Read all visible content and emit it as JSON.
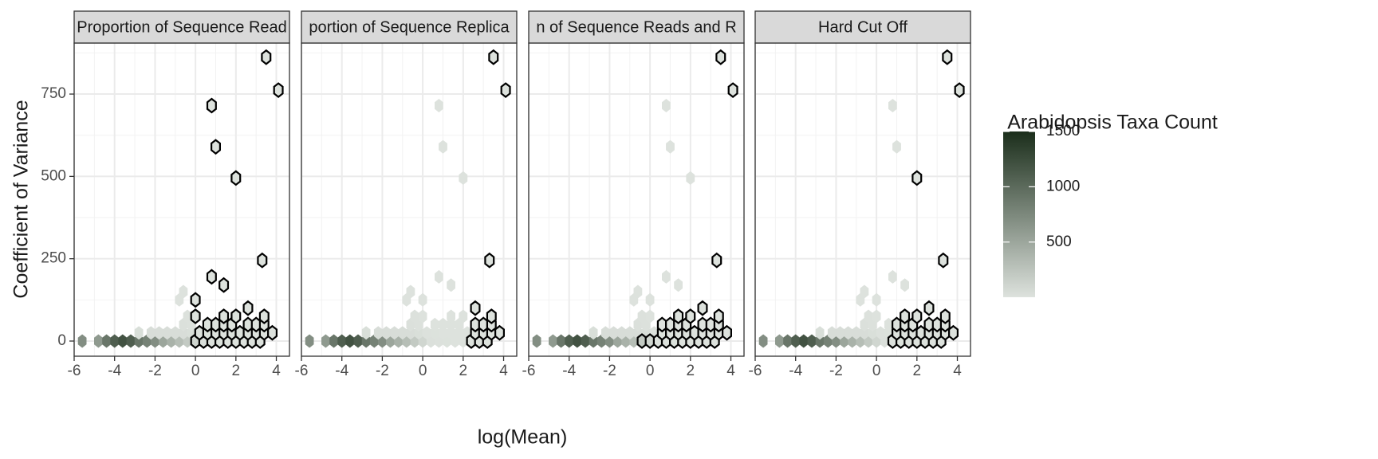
{
  "chart_data": {
    "type": "hexbin",
    "x_label": "log(Mean)",
    "y_label": "Coefficient of Variance",
    "legend_title": "Arabidopsis Taxa Count",
    "xlim": [
      -6.0,
      4.65
    ],
    "ylim": [
      -46,
      905
    ],
    "xticks": [
      -6,
      -4,
      -2,
      0,
      2,
      4
    ],
    "yticks": [
      0,
      250,
      500,
      750
    ],
    "x_minor_ticks": [
      -5,
      -3,
      -1,
      1,
      3
    ],
    "y_minor_ticks": [
      125,
      375,
      625,
      875
    ],
    "grid": true,
    "colorlim": [
      1,
      1500
    ],
    "colorticks": [
      500,
      1000,
      1500
    ],
    "colors": [
      "#dde2dd",
      "#1b2e1b"
    ],
    "outline_color": "#000000",
    "hexes": {
      "x": [
        -5.6,
        -4.8,
        -4.4,
        -4.0,
        -3.6,
        -3.2,
        -2.8,
        -2.4,
        -2.0,
        -1.6,
        -1.2,
        -0.8,
        -0.4,
        0,
        0.4,
        0.8,
        1.2,
        1.6,
        2.0,
        2.4,
        2.8,
        3.2,
        -2.8,
        -2.2,
        -1.8,
        -1.4,
        -1.0,
        -0.6,
        -0.2,
        0.2,
        0.6,
        1.0,
        1.4,
        1.8,
        2.2,
        2.6,
        3.0,
        3.4,
        3.8,
        -0.6,
        -0.2,
        0.6,
        1.0,
        1.4,
        1.8,
        2.6,
        3.0,
        3.4,
        -0.4,
        0,
        1.4,
        2.0,
        3.4,
        2.6,
        -0.8,
        -0.6,
        0,
        0.8,
        1.4,
        3.3,
        0.8,
        1.0,
        2.0,
        3.5,
        4.1
      ],
      "y": [
        0,
        0,
        0,
        0,
        0,
        0,
        0,
        0,
        0,
        0,
        0,
        0,
        0,
        0,
        0,
        0,
        0,
        0,
        0,
        0,
        0,
        0,
        25,
        25,
        25,
        25,
        25,
        25,
        25,
        25,
        25,
        25,
        25,
        25,
        25,
        25,
        25,
        25,
        25,
        50,
        50,
        50,
        50,
        50,
        50,
        50,
        50,
        50,
        75,
        75,
        75,
        75,
        75,
        100,
        125,
        150,
        125,
        195,
        170,
        245,
        715,
        590,
        495,
        862,
        762
      ],
      "count": [
        700,
        600,
        900,
        1100,
        1200,
        1100,
        900,
        800,
        700,
        500,
        400,
        300,
        200,
        100,
        20,
        10,
        5,
        3,
        2,
        2,
        1,
        1,
        30,
        40,
        40,
        40,
        40,
        40,
        30,
        10,
        5,
        3,
        2,
        2,
        1,
        1,
        1,
        1,
        1,
        20,
        10,
        3,
        2,
        2,
        1,
        1,
        1,
        1,
        10,
        2,
        2,
        1,
        1,
        1,
        3,
        3,
        2,
        1,
        1,
        1,
        1,
        1,
        1,
        1,
        1
      ]
    },
    "facets": [
      {
        "title": "Proportion of Sequence Read",
        "outlined": [
          false,
          false,
          false,
          false,
          false,
          false,
          false,
          false,
          false,
          false,
          false,
          false,
          false,
          true,
          true,
          true,
          true,
          true,
          true,
          true,
          true,
          true,
          false,
          false,
          false,
          false,
          false,
          false,
          false,
          true,
          true,
          true,
          true,
          true,
          true,
          true,
          true,
          true,
          true,
          false,
          false,
          true,
          true,
          true,
          true,
          true,
          true,
          true,
          false,
          true,
          true,
          true,
          true,
          true,
          false,
          false,
          true,
          true,
          true,
          true,
          true,
          true,
          true,
          true,
          true
        ]
      },
      {
        "title": "portion of Sequence Replica",
        "outlined": [
          false,
          false,
          false,
          false,
          false,
          false,
          false,
          false,
          false,
          false,
          false,
          false,
          false,
          false,
          false,
          false,
          false,
          false,
          false,
          true,
          true,
          true,
          false,
          false,
          false,
          false,
          false,
          false,
          false,
          false,
          false,
          false,
          false,
          false,
          false,
          true,
          true,
          true,
          true,
          false,
          false,
          false,
          false,
          false,
          false,
          true,
          true,
          true,
          false,
          false,
          false,
          false,
          true,
          true,
          false,
          false,
          false,
          false,
          false,
          true,
          false,
          false,
          false,
          true,
          true
        ]
      },
      {
        "title": "n of Sequence Reads and R",
        "outlined": [
          false,
          false,
          false,
          false,
          false,
          false,
          false,
          false,
          false,
          false,
          false,
          false,
          true,
          true,
          true,
          true,
          true,
          true,
          true,
          true,
          true,
          true,
          false,
          false,
          false,
          false,
          false,
          false,
          false,
          false,
          true,
          true,
          true,
          true,
          true,
          true,
          true,
          true,
          true,
          false,
          false,
          true,
          true,
          true,
          true,
          true,
          true,
          true,
          false,
          false,
          true,
          true,
          true,
          true,
          false,
          false,
          false,
          false,
          false,
          true,
          false,
          false,
          false,
          true,
          true
        ]
      },
      {
        "title": "Hard Cut Off",
        "outlined": [
          false,
          false,
          false,
          false,
          false,
          false,
          false,
          false,
          false,
          false,
          false,
          false,
          false,
          false,
          false,
          true,
          true,
          true,
          true,
          true,
          true,
          true,
          false,
          false,
          false,
          false,
          false,
          false,
          false,
          false,
          false,
          true,
          true,
          true,
          true,
          true,
          true,
          true,
          true,
          false,
          false,
          false,
          true,
          true,
          true,
          true,
          true,
          true,
          false,
          false,
          true,
          true,
          true,
          true,
          false,
          false,
          false,
          false,
          false,
          true,
          false,
          false,
          true,
          true,
          true
        ]
      }
    ]
  }
}
